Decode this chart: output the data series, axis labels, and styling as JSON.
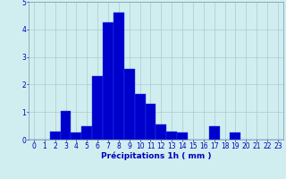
{
  "categories": [
    0,
    1,
    2,
    3,
    4,
    5,
    6,
    7,
    8,
    9,
    10,
    11,
    12,
    13,
    14,
    15,
    16,
    17,
    18,
    19,
    20,
    21,
    22,
    23
  ],
  "values": [
    0,
    0,
    0.3,
    1.05,
    0.25,
    0.5,
    2.3,
    4.25,
    4.6,
    2.55,
    1.65,
    1.3,
    0.55,
    0.3,
    0.25,
    0,
    0,
    0.5,
    0,
    0.25,
    0,
    0,
    0,
    0
  ],
  "bar_color": "#0000cc",
  "bar_edge_color": "#2244ee",
  "background_color": "#d0eef0",
  "grid_color": "#b0c8cc",
  "xlabel": "Précipitations 1h ( mm )",
  "xlabel_color": "#0000bb",
  "tick_color": "#0000bb",
  "ylim": [
    0,
    5
  ],
  "yticks": [
    0,
    1,
    2,
    3,
    4,
    5
  ],
  "tick_fontsize": 5.5,
  "label_fontsize": 6.5
}
